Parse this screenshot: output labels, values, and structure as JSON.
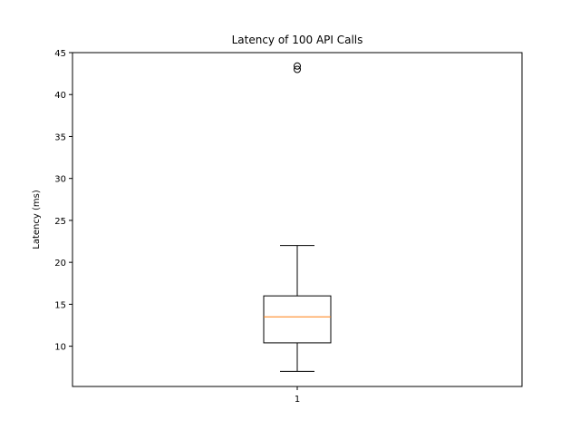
{
  "chart_data": {
    "type": "box",
    "title": "Latency of 100 API Calls",
    "xlabel": "",
    "ylabel": "Latency (ms)",
    "categories": [
      "1"
    ],
    "ylim": [
      5.2,
      45.0
    ],
    "yticks": [
      10,
      15,
      20,
      25,
      30,
      35,
      40,
      45
    ],
    "grid": false,
    "boxes": [
      {
        "category": "1",
        "whisker_low": 7.0,
        "q1": 10.4,
        "median": 13.5,
        "q3": 16.0,
        "whisker_high": 22.0,
        "outliers": [
          43.0,
          43.4
        ]
      }
    ],
    "colors": {
      "box": "#000000",
      "median": "#ff7f0e",
      "outlier": "#000000"
    }
  }
}
